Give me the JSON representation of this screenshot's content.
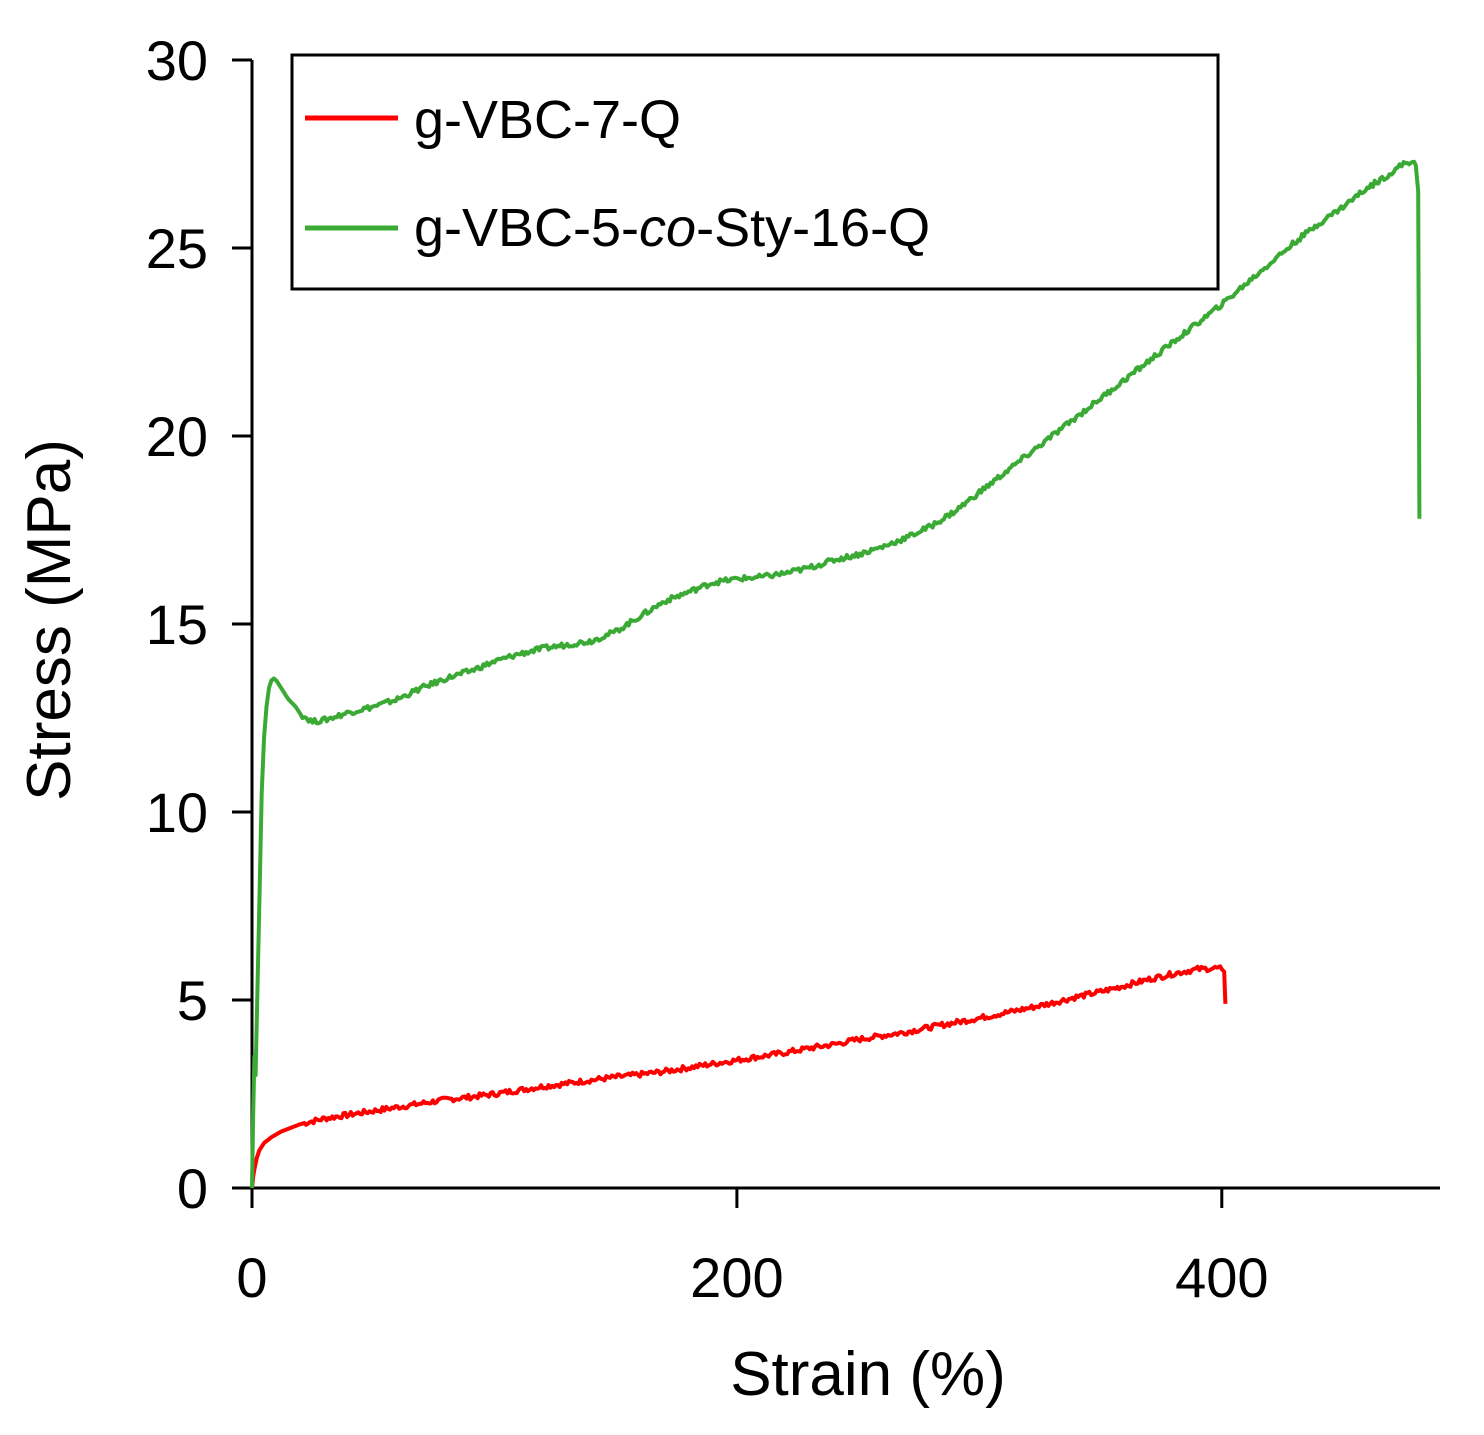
{
  "chart_data": {
    "type": "line",
    "xlabel": "Strain (%)",
    "ylabel": "Stress (MPa)",
    "xlim": [
      0,
      490
    ],
    "ylim": [
      0,
      30
    ],
    "xticks": [
      0,
      200,
      400
    ],
    "yticks": [
      0,
      5,
      10,
      15,
      20,
      25,
      30
    ],
    "grid": false,
    "legend_position": "top-left",
    "series": [
      {
        "name": "g-VBC-7-Q",
        "name_parts": [
          "g-VBC-7-Q"
        ],
        "color": "#ff0000",
        "points": [
          [
            0,
            0
          ],
          [
            0.5,
            0.3
          ],
          [
            1,
            0.5
          ],
          [
            2,
            0.8
          ],
          [
            3,
            1.0
          ],
          [
            5,
            1.2
          ],
          [
            8,
            1.35
          ],
          [
            12,
            1.5
          ],
          [
            16,
            1.6
          ],
          [
            20,
            1.7
          ],
          [
            30,
            1.85
          ],
          [
            40,
            1.95
          ],
          [
            50,
            2.05
          ],
          [
            60,
            2.15
          ],
          [
            70,
            2.25
          ],
          [
            80,
            2.35
          ],
          [
            90,
            2.42
          ],
          [
            100,
            2.5
          ],
          [
            110,
            2.6
          ],
          [
            120,
            2.7
          ],
          [
            130,
            2.78
          ],
          [
            140,
            2.87
          ],
          [
            150,
            2.95
          ],
          [
            160,
            3.02
          ],
          [
            170,
            3.1
          ],
          [
            180,
            3.2
          ],
          [
            190,
            3.3
          ],
          [
            200,
            3.4
          ],
          [
            210,
            3.5
          ],
          [
            220,
            3.6
          ],
          [
            230,
            3.72
          ],
          [
            240,
            3.82
          ],
          [
            250,
            3.95
          ],
          [
            260,
            4.05
          ],
          [
            270,
            4.15
          ],
          [
            280,
            4.28
          ],
          [
            290,
            4.4
          ],
          [
            300,
            4.52
          ],
          [
            310,
            4.65
          ],
          [
            320,
            4.78
          ],
          [
            330,
            4.92
          ],
          [
            340,
            5.08
          ],
          [
            350,
            5.22
          ],
          [
            360,
            5.38
          ],
          [
            370,
            5.55
          ],
          [
            380,
            5.7
          ],
          [
            390,
            5.82
          ],
          [
            398,
            5.85
          ],
          [
            400,
            5.82
          ],
          [
            401,
            5.75
          ],
          [
            401.5,
            4.9
          ]
        ]
      },
      {
        "name": "g-VBC-5-co-Sty-16-Q",
        "name_parts": [
          "g-VBC-5-",
          "co",
          "-Sty-16-Q"
        ],
        "color": "#3aaa35",
        "points": [
          [
            0,
            0
          ],
          [
            0.5,
            2
          ],
          [
            1,
            3.5
          ],
          [
            1.5,
            3.0
          ],
          [
            2,
            4.5
          ],
          [
            3,
            7.5
          ],
          [
            4,
            10.5
          ],
          [
            5,
            12.0
          ],
          [
            6,
            12.8
          ],
          [
            7,
            13.3
          ],
          [
            8,
            13.5
          ],
          [
            9,
            13.55
          ],
          [
            10,
            13.5
          ],
          [
            12,
            13.3
          ],
          [
            15,
            13.0
          ],
          [
            18,
            12.8
          ],
          [
            20,
            12.6
          ],
          [
            25,
            12.4
          ],
          [
            30,
            12.45
          ],
          [
            35,
            12.55
          ],
          [
            40,
            12.65
          ],
          [
            50,
            12.8
          ],
          [
            60,
            13.0
          ],
          [
            70,
            13.3
          ],
          [
            80,
            13.55
          ],
          [
            90,
            13.75
          ],
          [
            100,
            14.0
          ],
          [
            110,
            14.2
          ],
          [
            120,
            14.35
          ],
          [
            130,
            14.45
          ],
          [
            140,
            14.55
          ],
          [
            150,
            14.8
          ],
          [
            160,
            15.2
          ],
          [
            170,
            15.6
          ],
          [
            180,
            15.85
          ],
          [
            190,
            16.1
          ],
          [
            200,
            16.2
          ],
          [
            210,
            16.25
          ],
          [
            220,
            16.35
          ],
          [
            230,
            16.5
          ],
          [
            240,
            16.7
          ],
          [
            250,
            16.85
          ],
          [
            260,
            17.05
          ],
          [
            270,
            17.3
          ],
          [
            280,
            17.6
          ],
          [
            290,
            18.0
          ],
          [
            300,
            18.5
          ],
          [
            310,
            19.0
          ],
          [
            320,
            19.5
          ],
          [
            330,
            20.0
          ],
          [
            340,
            20.5
          ],
          [
            350,
            21.0
          ],
          [
            360,
            21.5
          ],
          [
            370,
            22.0
          ],
          [
            380,
            22.5
          ],
          [
            390,
            23.0
          ],
          [
            400,
            23.5
          ],
          [
            410,
            24.05
          ],
          [
            420,
            24.6
          ],
          [
            430,
            25.15
          ],
          [
            440,
            25.65
          ],
          [
            450,
            26.1
          ],
          [
            460,
            26.6
          ],
          [
            470,
            27.0
          ],
          [
            475,
            27.25
          ],
          [
            478,
            27.3
          ],
          [
            480,
            27.2
          ],
          [
            481,
            26.5
          ],
          [
            481.5,
            17.8
          ]
        ]
      }
    ]
  }
}
